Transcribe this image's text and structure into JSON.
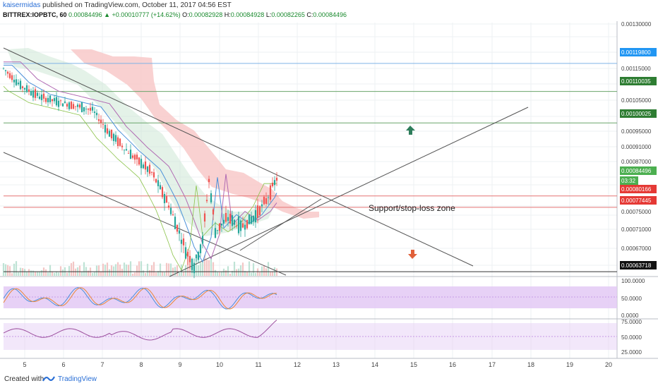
{
  "header": {
    "author": "kaisermidas",
    "published": "published on TradingView.com, October 11, 2017 04:56 EST",
    "symbol": "BITTREX:IOPBTC, 60",
    "last": "0.00084496",
    "change": "+0.00010777 (+14.62%)",
    "open_label": "O:",
    "open": "0.00082928",
    "high_label": "H:",
    "high": "0.00084928",
    "low_label": "L:",
    "low": "0.00082265",
    "close_label": "C:",
    "close": "0.00084496"
  },
  "chart_data": {
    "type": "line",
    "title": "BITTREX:IOPBTC, 60",
    "price_axis": {
      "ticks": [
        "0.00130000",
        "0.00115000",
        "0.00105000",
        "0.00095000",
        "0.00091000",
        "0.00087000",
        "0.00075000",
        "0.00071000",
        "0.00067000"
      ],
      "badges": [
        {
          "label": "0.00119800",
          "value": 0.001198,
          "color": "#2196f3"
        },
        {
          "label": "0.00110035",
          "value": 0.00110035,
          "color": "#2e7d32"
        },
        {
          "label": "0.00100025",
          "value": 0.00100025,
          "color": "#2e7d32"
        },
        {
          "label": "0.00084496",
          "value": 0.00084496,
          "color": "#4caf50"
        },
        {
          "label": "03:32",
          "value": 0.000832,
          "color": "#4caf50"
        },
        {
          "label": "0.00080166",
          "value": 0.00080166,
          "color": "#e53935"
        },
        {
          "label": "0.00077445",
          "value": 0.00077445,
          "color": "#e53935"
        },
        {
          "label": "0.00063718",
          "value": 0.00063718,
          "color": "#111111"
        }
      ]
    },
    "oscillator1_ticks": [
      "100.0000",
      "50.0000",
      "0.0000"
    ],
    "oscillator2_ticks": [
      "75.0000",
      "50.0000",
      "25.0000"
    ],
    "x_ticks": [
      "5",
      "6",
      "7",
      "8",
      "9",
      "10",
      "11",
      "12",
      "13",
      "14",
      "15",
      "16",
      "17",
      "18",
      "19",
      "20"
    ],
    "annotations": [
      {
        "text": "Support/stop-loss zone"
      }
    ],
    "horizontal_levels": [
      0.001198,
      0.00110035,
      0.00100025,
      0.00080166,
      0.00077445,
      0.00063718
    ],
    "colors": {
      "up": "#26a69a",
      "down": "#ef5350",
      "cloud_red": "#f8c9c9",
      "cloud_green": "#cde8d6",
      "osc_band": "#e3c9f5"
    }
  },
  "footer": {
    "created_with": "Created with",
    "brand": "TradingView",
    "logo_icon": "tradingview-logo-icon"
  }
}
